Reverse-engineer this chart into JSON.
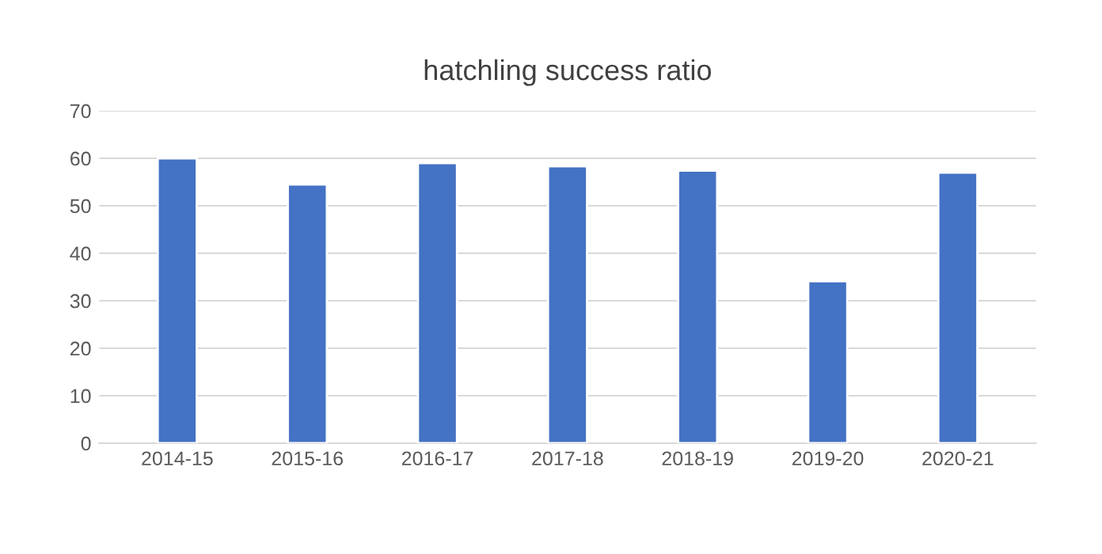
{
  "chart_data": {
    "type": "bar",
    "title": "hatchling success ratio",
    "categories": [
      "2014-15",
      "2015-16",
      "2016-17",
      "2017-18",
      "2018-19",
      "2019-20",
      "2020-21"
    ],
    "values": [
      60,
      54.5,
      59,
      58.3,
      57.4,
      34.1,
      57
    ],
    "color": "#4472c4",
    "ylim": [
      0,
      70
    ],
    "yticks": [
      0,
      10,
      20,
      30,
      40,
      50,
      60,
      70
    ],
    "grid": "y"
  }
}
